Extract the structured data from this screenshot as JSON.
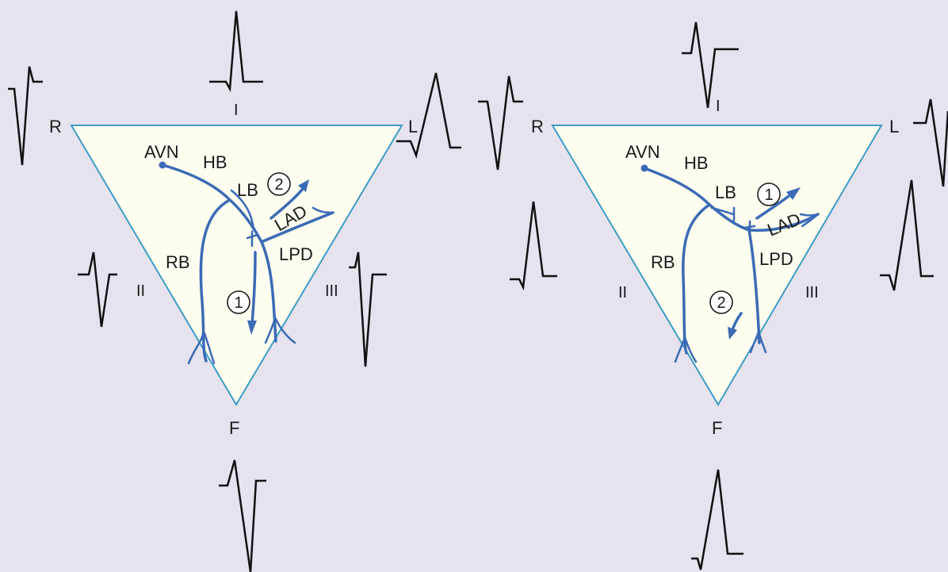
{
  "panels": [
    {
      "vertices": {
        "right_arm": "R",
        "left_arm": "L",
        "foot": "F"
      },
      "leads": {
        "lead_I": "I",
        "lead_II": "II",
        "lead_III": "III"
      },
      "structures": {
        "av_node": "AVN",
        "his_bundle": "HB",
        "left_bundle": "LB",
        "right_bundle": "RB",
        "left_anterior_division": "LAD",
        "left_posterior_division": "LPD"
      },
      "steps": {
        "first": "1",
        "second": "2"
      }
    },
    {
      "vertices": {
        "right_arm": "R",
        "left_arm": "L",
        "foot": "F"
      },
      "leads": {
        "lead_I": "I",
        "lead_II": "II",
        "lead_III": "III"
      },
      "structures": {
        "av_node": "AVN",
        "his_bundle": "HB",
        "left_bundle": "LB",
        "right_bundle": "RB",
        "left_anterior_division": "LAD",
        "left_posterior_division": "LPD"
      },
      "steps": {
        "first": "1",
        "second": "2"
      }
    }
  ],
  "colors": {
    "triangle_fill": "#fdfdf0",
    "triangle_stroke": "#3d9cc4",
    "conduction": "#3b6bb5",
    "background": "#e6e3ee"
  }
}
